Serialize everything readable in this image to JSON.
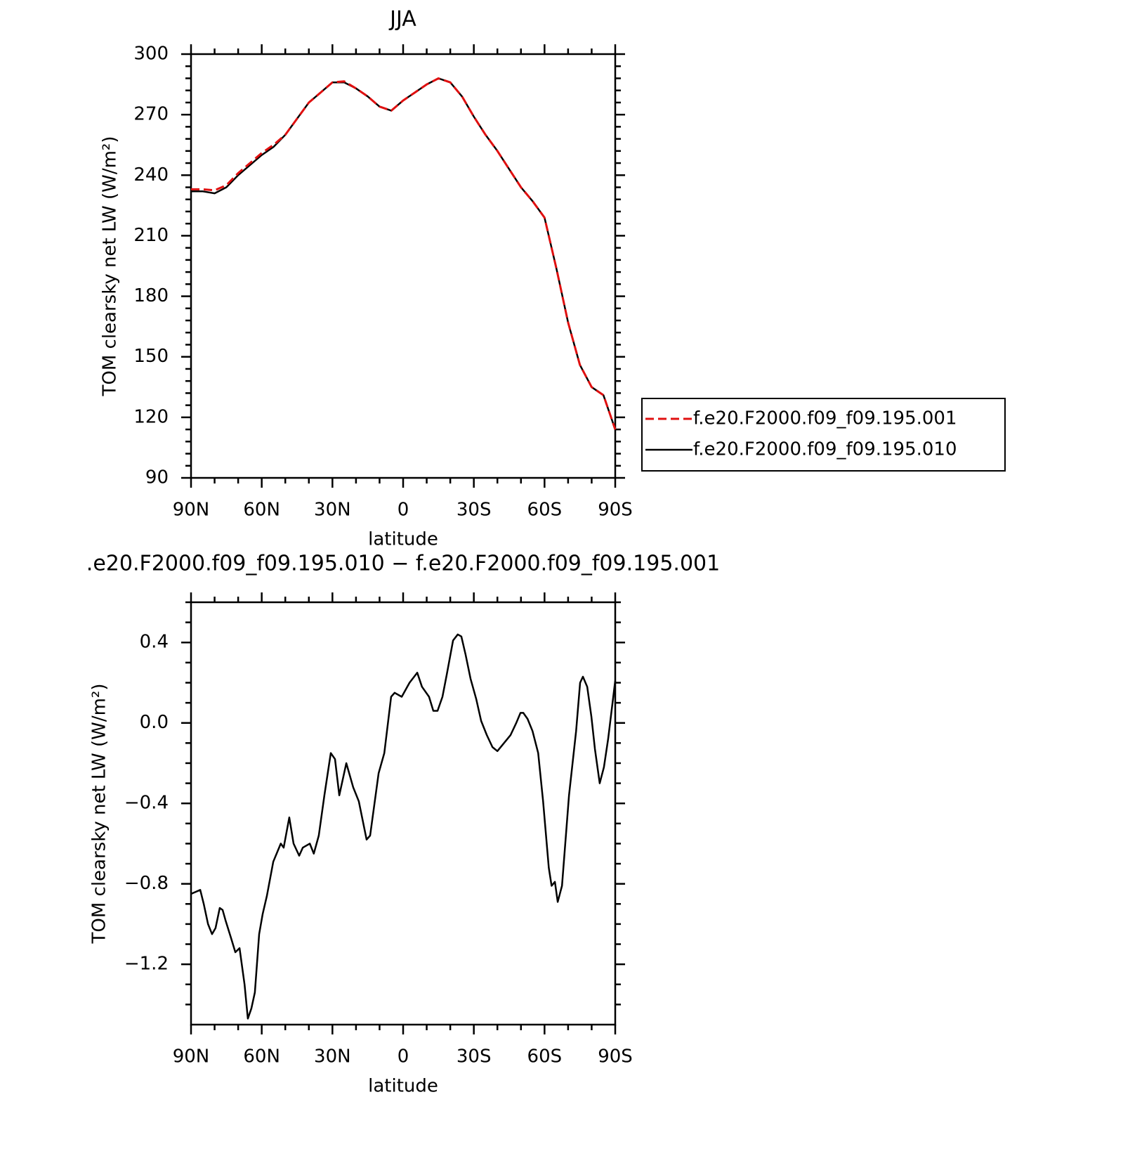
{
  "chart_data": [
    {
      "type": "line",
      "title": "JJA",
      "xlabel": "latitude",
      "ylabel": "TOM clearsky net LW (W/m²)",
      "x": [
        90,
        85,
        80,
        75,
        70,
        65,
        60,
        55,
        50,
        45,
        40,
        35,
        30,
        25,
        20,
        15,
        10,
        5,
        0,
        -5,
        -10,
        -15,
        -20,
        -25,
        -30,
        -35,
        -40,
        -45,
        -50,
        -55,
        -60,
        -65,
        -70,
        -75,
        -80,
        -85,
        -90
      ],
      "series": [
        {
          "name": "f.e20.F2000.f09_f09.195.001",
          "color": "#e01010",
          "dash": true,
          "values": [
            233,
            233,
            232.5,
            235,
            241,
            246,
            251,
            255,
            260,
            268,
            276,
            281,
            286,
            286.5,
            283,
            279,
            274,
            272,
            277,
            281,
            285,
            288,
            286,
            279,
            269,
            260,
            252,
            243,
            234,
            227,
            219,
            194,
            167,
            146,
            135,
            131,
            114
          ]
        },
        {
          "name": "f.e20.F2000.f09_f09.195.010",
          "color": "#000000",
          "dash": false,
          "values": [
            232,
            232,
            231,
            234,
            240,
            245,
            250,
            254,
            260,
            268,
            276,
            281,
            286,
            286,
            283,
            279,
            274,
            272,
            277,
            281,
            285,
            288,
            286,
            279,
            269,
            260,
            252,
            243,
            234,
            227,
            219,
            194,
            167,
            146,
            135,
            131,
            114
          ]
        }
      ],
      "xlim": [
        90,
        -90
      ],
      "xticks": [
        {
          "value": 90,
          "label": "90N"
        },
        {
          "value": 60,
          "label": "60N"
        },
        {
          "value": 30,
          "label": "30N"
        },
        0,
        {
          "value": -30,
          "label": "30S"
        },
        {
          "value": -60,
          "label": "60S"
        },
        {
          "value": -90,
          "label": "90S"
        }
      ],
      "xminorticks": [
        80,
        70,
        50,
        40,
        20,
        10,
        -10,
        -20,
        -40,
        -50,
        -70,
        -80
      ],
      "ylim": [
        90,
        300
      ],
      "yticks": [
        90,
        120,
        150,
        180,
        210,
        240,
        270,
        300
      ],
      "yminorticks": [
        96,
        102,
        108,
        114,
        126,
        132,
        138,
        144,
        156,
        162,
        168,
        174,
        186,
        192,
        198,
        204,
        216,
        222,
        228,
        234,
        246,
        252,
        258,
        264,
        276,
        282,
        288,
        294
      ],
      "legend": "right"
    },
    {
      "type": "line",
      "title": ".e20.F2000.f09_f09.195.010 − f.e20.F2000.f09_f09.195.001",
      "xlabel": "latitude",
      "ylabel": "TOM clearsky net LW (W/m²)",
      "x": [
        90,
        86.1,
        84.6,
        82.8,
        81.1,
        79.6,
        77.8,
        76.6,
        75.4,
        73.0,
        71.2,
        69.4,
        67.3,
        65.9,
        64.4,
        62.9,
        61.1,
        59.6,
        57.8,
        55.1,
        51.9,
        50.7,
        48.3,
        46.5,
        44.1,
        42.6,
        39.6,
        37.9,
        35.8,
        33.4,
        30.7,
        28.9,
        27.1,
        24.1,
        21.2,
        18.8,
        15.5,
        14.0,
        10.4,
        8.0,
        5.1,
        3.6,
        0.6,
        -2.7,
        -6.0,
        -8.0,
        -11.0,
        -12.8,
        -14.6,
        -16.7,
        -18.5,
        -21.2,
        -23.2,
        -24.7,
        -26.5,
        -28.6,
        -31.0,
        -33.1,
        -35.5,
        -37.9,
        -40.0,
        -42.1,
        -45.6,
        -48.0,
        -49.8,
        -51.0,
        -52.8,
        -54.9,
        -57.3,
        -59.4,
        -61.8,
        -63.0,
        -64.4,
        -65.6,
        -67.4,
        -70.4,
        -73.4,
        -75.1,
        -76.3,
        -78.1,
        -79.9,
        -81.4,
        -83.4,
        -85.2,
        -87.0,
        -90
      ],
      "series": [
        {
          "color": "#000000",
          "dash": false,
          "values": [
            -0.85,
            -0.83,
            -0.9,
            -1.0,
            -1.05,
            -1.02,
            -0.92,
            -0.93,
            -0.98,
            -1.07,
            -1.14,
            -1.12,
            -1.3,
            -1.47,
            -1.42,
            -1.34,
            -1.05,
            -0.95,
            -0.86,
            -0.69,
            -0.6,
            -0.62,
            -0.47,
            -0.6,
            -0.66,
            -0.62,
            -0.6,
            -0.65,
            -0.56,
            -0.36,
            -0.15,
            -0.18,
            -0.36,
            -0.2,
            -0.32,
            -0.39,
            -0.58,
            -0.56,
            -0.25,
            -0.15,
            0.13,
            0.15,
            0.13,
            0.2,
            0.25,
            0.18,
            0.13,
            0.06,
            0.06,
            0.13,
            0.24,
            0.41,
            0.44,
            0.43,
            0.34,
            0.22,
            0.12,
            0.01,
            -0.06,
            -0.12,
            -0.14,
            -0.11,
            -0.06,
            0.0,
            0.05,
            0.05,
            0.02,
            -0.04,
            -0.15,
            -0.39,
            -0.72,
            -0.81,
            -0.79,
            -0.89,
            -0.81,
            -0.36,
            -0.04,
            0.2,
            0.23,
            0.18,
            0.03,
            -0.13,
            -0.3,
            -0.22,
            -0.08,
            0.21
          ]
        }
      ],
      "xlim": [
        90,
        -90
      ],
      "xticks": [
        {
          "value": 90,
          "label": "90N"
        },
        {
          "value": 60,
          "label": "60N"
        },
        {
          "value": 30,
          "label": "30N"
        },
        0,
        {
          "value": -30,
          "label": "30S"
        },
        {
          "value": -60,
          "label": "60S"
        },
        {
          "value": -90,
          "label": "90S"
        }
      ],
      "xminorticks": [
        80,
        70,
        50,
        40,
        20,
        10,
        -10,
        -20,
        -40,
        -50,
        -70,
        -80
      ],
      "ylim": [
        -1.5,
        0.6
      ],
      "yticks": [
        {
          "value": -1.2,
          "label": "−1.2"
        },
        {
          "value": -0.8,
          "label": "−0.8"
        },
        {
          "value": -0.4,
          "label": "−0.4"
        },
        {
          "value": 0,
          "label": "0.0"
        },
        0.4
      ],
      "yminorticks": [
        -1.4,
        -1.3,
        -1.1,
        -1.0,
        -0.9,
        -0.7,
        -0.6,
        -0.5,
        -0.3,
        -0.2,
        -0.1,
        0.1,
        0.2,
        0.3,
        0.5,
        0.6
      ]
    }
  ]
}
